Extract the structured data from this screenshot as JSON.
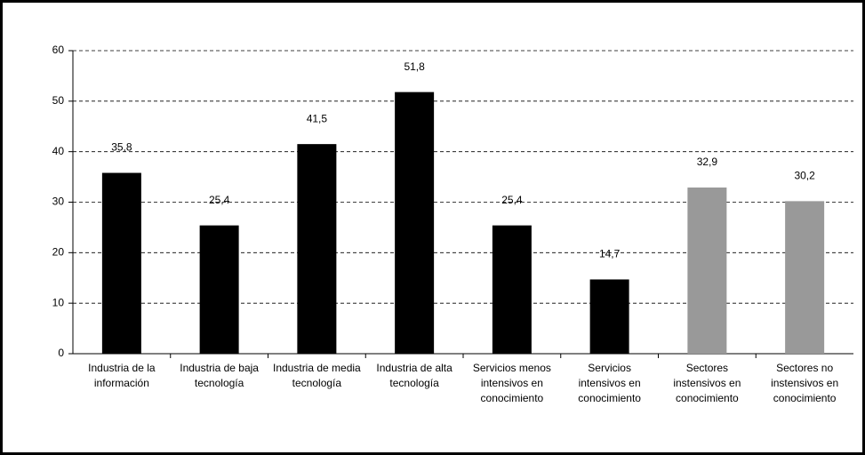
{
  "chart_data": {
    "type": "bar",
    "categories": [
      "Industria de la información",
      "Industria de baja tecnología",
      "Industria de media tecnología",
      "Industria de alta tecnología",
      "Servicios menos intensivos en conocimiento",
      "Servicios intensivos en conocimiento",
      "Sectores instensivos en conocimiento",
      "Sectores no instensivos en conocimiento"
    ],
    "values": [
      35.8,
      25.4,
      41.5,
      51.8,
      25.4,
      14.7,
      32.9,
      30.2
    ],
    "value_labels": [
      "35,8",
      "25,4",
      "41,5",
      "51,8",
      "25,4",
      "14,7",
      "32,9",
      "30,2"
    ],
    "colors": [
      "#000000",
      "#000000",
      "#000000",
      "#000000",
      "#000000",
      "#000000",
      "#999999",
      "#999999"
    ],
    "ylim": [
      0,
      60
    ],
    "yticks": [
      0,
      10,
      20,
      30,
      40,
      50,
      60
    ],
    "grid": true
  }
}
